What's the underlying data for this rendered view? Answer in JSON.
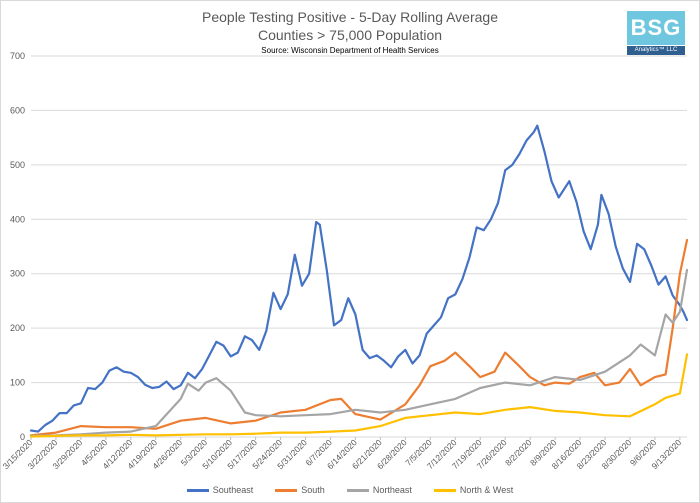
{
  "header": {
    "title": "People Testing Positive - 5-Day Rolling Average",
    "subtitle": "Counties > 75,000 Population",
    "source": "Source: Wisconsin Department of Health Services"
  },
  "logo": {
    "main": "BSG",
    "sub": "Analytics™ LLC"
  },
  "chart_data": {
    "type": "line",
    "title": "People Testing Positive - 5-Day Rolling Average",
    "subtitle": "Counties > 75,000 Population",
    "ylim": [
      0,
      700
    ],
    "yticks": [
      0,
      100,
      200,
      300,
      400,
      500,
      600,
      700
    ],
    "grid": true,
    "legend": "bottom",
    "x_start": "3/15/2020",
    "x_end": "9/15/2020",
    "xticks": [
      "3/15/2020",
      "3/22/2020",
      "3/29/2020",
      "4/5/2020",
      "4/12/2020",
      "4/19/2020",
      "4/26/2020",
      "5/3/2020",
      "5/10/2020",
      "5/17/2020",
      "5/24/2020",
      "5/31/2020",
      "6/7/2020",
      "6/14/2020",
      "6/21/2020",
      "6/28/2020",
      "7/5/2020",
      "7/12/2020",
      "7/19/2020",
      "7/26/2020",
      "8/2/2020",
      "8/9/2020",
      "8/16/2020",
      "8/23/2020",
      "8/30/2020",
      "9/6/2020",
      "9/13/2020"
    ],
    "series": [
      {
        "name": "Southeast",
        "color": "#4472c4",
        "points": [
          [
            "3/15/2020",
            12
          ],
          [
            "3/17/2020",
            10
          ],
          [
            "3/19/2020",
            22
          ],
          [
            "3/21/2020",
            30
          ],
          [
            "3/23/2020",
            44
          ],
          [
            "3/25/2020",
            44
          ],
          [
            "3/27/2020",
            58
          ],
          [
            "3/29/2020",
            62
          ],
          [
            "3/31/2020",
            90
          ],
          [
            "4/2/2020",
            88
          ],
          [
            "4/4/2020",
            100
          ],
          [
            "4/6/2020",
            122
          ],
          [
            "4/8/2020",
            128
          ],
          [
            "4/10/2020",
            120
          ],
          [
            "4/12/2020",
            118
          ],
          [
            "4/14/2020",
            110
          ],
          [
            "4/16/2020",
            96
          ],
          [
            "4/18/2020",
            90
          ],
          [
            "4/20/2020",
            92
          ],
          [
            "4/22/2020",
            102
          ],
          [
            "4/24/2020",
            88
          ],
          [
            "4/26/2020",
            95
          ],
          [
            "4/28/2020",
            118
          ],
          [
            "4/30/2020",
            108
          ],
          [
            "5/2/2020",
            125
          ],
          [
            "5/4/2020",
            150
          ],
          [
            "5/6/2020",
            175
          ],
          [
            "5/8/2020",
            168
          ],
          [
            "5/10/2020",
            148
          ],
          [
            "5/12/2020",
            155
          ],
          [
            "5/14/2020",
            185
          ],
          [
            "5/16/2020",
            178
          ],
          [
            "5/18/2020",
            160
          ],
          [
            "5/20/2020",
            195
          ],
          [
            "5/22/2020",
            265
          ],
          [
            "5/24/2020",
            235
          ],
          [
            "5/26/2020",
            262
          ],
          [
            "5/28/2020",
            335
          ],
          [
            "5/30/2020",
            278
          ],
          [
            "6/1/2020",
            300
          ],
          [
            "6/3/2020",
            395
          ],
          [
            "6/4/2020",
            390
          ],
          [
            "6/6/2020",
            305
          ],
          [
            "6/8/2020",
            205
          ],
          [
            "6/10/2020",
            215
          ],
          [
            "6/12/2020",
            255
          ],
          [
            "6/14/2020",
            225
          ],
          [
            "6/16/2020",
            160
          ],
          [
            "6/18/2020",
            145
          ],
          [
            "6/20/2020",
            150
          ],
          [
            "6/22/2020",
            140
          ],
          [
            "6/24/2020",
            128
          ],
          [
            "6/26/2020",
            148
          ],
          [
            "6/28/2020",
            160
          ],
          [
            "6/30/2020",
            135
          ],
          [
            "7/2/2020",
            150
          ],
          [
            "7/4/2020",
            190
          ],
          [
            "7/6/2020",
            205
          ],
          [
            "7/8/2020",
            220
          ],
          [
            "7/10/2020",
            255
          ],
          [
            "7/12/2020",
            262
          ],
          [
            "7/14/2020",
            290
          ],
          [
            "7/16/2020",
            330
          ],
          [
            "7/18/2020",
            385
          ],
          [
            "7/20/2020",
            380
          ],
          [
            "7/22/2020",
            400
          ],
          [
            "7/24/2020",
            430
          ],
          [
            "7/26/2020",
            490
          ],
          [
            "7/28/2020",
            500
          ],
          [
            "7/29/2020",
            510
          ],
          [
            "7/30/2020",
            520
          ],
          [
            "8/1/2020",
            545
          ],
          [
            "8/3/2020",
            560
          ],
          [
            "8/4/2020",
            572
          ],
          [
            "8/6/2020",
            525
          ],
          [
            "8/8/2020",
            470
          ],
          [
            "8/10/2020",
            440
          ],
          [
            "8/11/2020",
            450
          ],
          [
            "8/13/2020",
            470
          ],
          [
            "8/15/2020",
            432
          ],
          [
            "8/17/2020",
            378
          ],
          [
            "8/19/2020",
            345
          ],
          [
            "8/21/2020",
            390
          ],
          [
            "8/22/2020",
            445
          ],
          [
            "8/24/2020",
            410
          ],
          [
            "8/26/2020",
            350
          ],
          [
            "8/28/2020",
            310
          ],
          [
            "8/30/2020",
            285
          ],
          [
            "9/1/2020",
            355
          ],
          [
            "9/3/2020",
            345
          ],
          [
            "9/5/2020",
            315
          ],
          [
            "9/7/2020",
            280
          ],
          [
            "9/9/2020",
            295
          ],
          [
            "9/11/2020",
            260
          ],
          [
            "9/13/2020",
            242
          ],
          [
            "9/14/2020",
            230
          ],
          [
            "9/15/2020",
            215
          ]
        ]
      },
      {
        "name": "South",
        "color": "#ed7d31",
        "points": [
          [
            "3/15/2020",
            3
          ],
          [
            "3/22/2020",
            8
          ],
          [
            "3/29/2020",
            20
          ],
          [
            "4/5/2020",
            18
          ],
          [
            "4/12/2020",
            18
          ],
          [
            "4/19/2020",
            15
          ],
          [
            "4/26/2020",
            30
          ],
          [
            "5/3/2020",
            35
          ],
          [
            "5/10/2020",
            25
          ],
          [
            "5/17/2020",
            30
          ],
          [
            "5/24/2020",
            45
          ],
          [
            "5/31/2020",
            50
          ],
          [
            "6/7/2020",
            68
          ],
          [
            "6/10/2020",
            70
          ],
          [
            "6/14/2020",
            42
          ],
          [
            "6/21/2020",
            32
          ],
          [
            "6/28/2020",
            60
          ],
          [
            "7/2/2020",
            95
          ],
          [
            "7/5/2020",
            130
          ],
          [
            "7/9/2020",
            140
          ],
          [
            "7/12/2020",
            155
          ],
          [
            "7/16/2020",
            130
          ],
          [
            "7/19/2020",
            110
          ],
          [
            "7/23/2020",
            120
          ],
          [
            "7/26/2020",
            155
          ],
          [
            "7/30/2020",
            130
          ],
          [
            "8/2/2020",
            110
          ],
          [
            "8/6/2020",
            95
          ],
          [
            "8/9/2020",
            100
          ],
          [
            "8/13/2020",
            98
          ],
          [
            "8/16/2020",
            110
          ],
          [
            "8/20/2020",
            118
          ],
          [
            "8/23/2020",
            95
          ],
          [
            "8/27/2020",
            100
          ],
          [
            "8/30/2020",
            125
          ],
          [
            "9/2/2020",
            95
          ],
          [
            "9/6/2020",
            110
          ],
          [
            "9/9/2020",
            115
          ],
          [
            "9/11/2020",
            200
          ],
          [
            "9/13/2020",
            300
          ],
          [
            "9/15/2020",
            362
          ]
        ]
      },
      {
        "name": "Northeast",
        "color": "#a5a5a5",
        "points": [
          [
            "3/15/2020",
            2
          ],
          [
            "3/22/2020",
            3
          ],
          [
            "3/29/2020",
            5
          ],
          [
            "4/5/2020",
            8
          ],
          [
            "4/12/2020",
            10
          ],
          [
            "4/19/2020",
            20
          ],
          [
            "4/26/2020",
            70
          ],
          [
            "4/28/2020",
            98
          ],
          [
            "5/1/2020",
            85
          ],
          [
            "5/3/2020",
            100
          ],
          [
            "5/6/2020",
            108
          ],
          [
            "5/10/2020",
            85
          ],
          [
            "5/14/2020",
            45
          ],
          [
            "5/17/2020",
            40
          ],
          [
            "5/24/2020",
            38
          ],
          [
            "5/31/2020",
            40
          ],
          [
            "6/7/2020",
            42
          ],
          [
            "6/14/2020",
            50
          ],
          [
            "6/21/2020",
            45
          ],
          [
            "6/28/2020",
            50
          ],
          [
            "7/5/2020",
            60
          ],
          [
            "7/12/2020",
            70
          ],
          [
            "7/19/2020",
            90
          ],
          [
            "7/26/2020",
            100
          ],
          [
            "8/2/2020",
            95
          ],
          [
            "8/9/2020",
            110
          ],
          [
            "8/16/2020",
            105
          ],
          [
            "8/23/2020",
            120
          ],
          [
            "8/30/2020",
            150
          ],
          [
            "9/2/2020",
            170
          ],
          [
            "9/6/2020",
            150
          ],
          [
            "9/9/2020",
            225
          ],
          [
            "9/11/2020",
            210
          ],
          [
            "9/13/2020",
            230
          ],
          [
            "9/15/2020",
            307
          ]
        ]
      },
      {
        "name": "North & West",
        "color": "#ffc000",
        "points": [
          [
            "3/15/2020",
            1
          ],
          [
            "3/22/2020",
            2
          ],
          [
            "3/29/2020",
            3
          ],
          [
            "4/5/2020",
            3
          ],
          [
            "4/12/2020",
            4
          ],
          [
            "4/19/2020",
            3
          ],
          [
            "4/26/2020",
            4
          ],
          [
            "5/3/2020",
            5
          ],
          [
            "5/10/2020",
            5
          ],
          [
            "5/17/2020",
            6
          ],
          [
            "5/24/2020",
            8
          ],
          [
            "5/31/2020",
            8
          ],
          [
            "6/7/2020",
            10
          ],
          [
            "6/14/2020",
            12
          ],
          [
            "6/21/2020",
            20
          ],
          [
            "6/28/2020",
            35
          ],
          [
            "7/5/2020",
            40
          ],
          [
            "7/12/2020",
            45
          ],
          [
            "7/19/2020",
            42
          ],
          [
            "7/26/2020",
            50
          ],
          [
            "8/2/2020",
            55
          ],
          [
            "8/9/2020",
            48
          ],
          [
            "8/16/2020",
            45
          ],
          [
            "8/23/2020",
            40
          ],
          [
            "8/30/2020",
            38
          ],
          [
            "9/6/2020",
            60
          ],
          [
            "9/9/2020",
            72
          ],
          [
            "9/13/2020",
            80
          ],
          [
            "9/15/2020",
            152
          ]
        ]
      }
    ]
  }
}
